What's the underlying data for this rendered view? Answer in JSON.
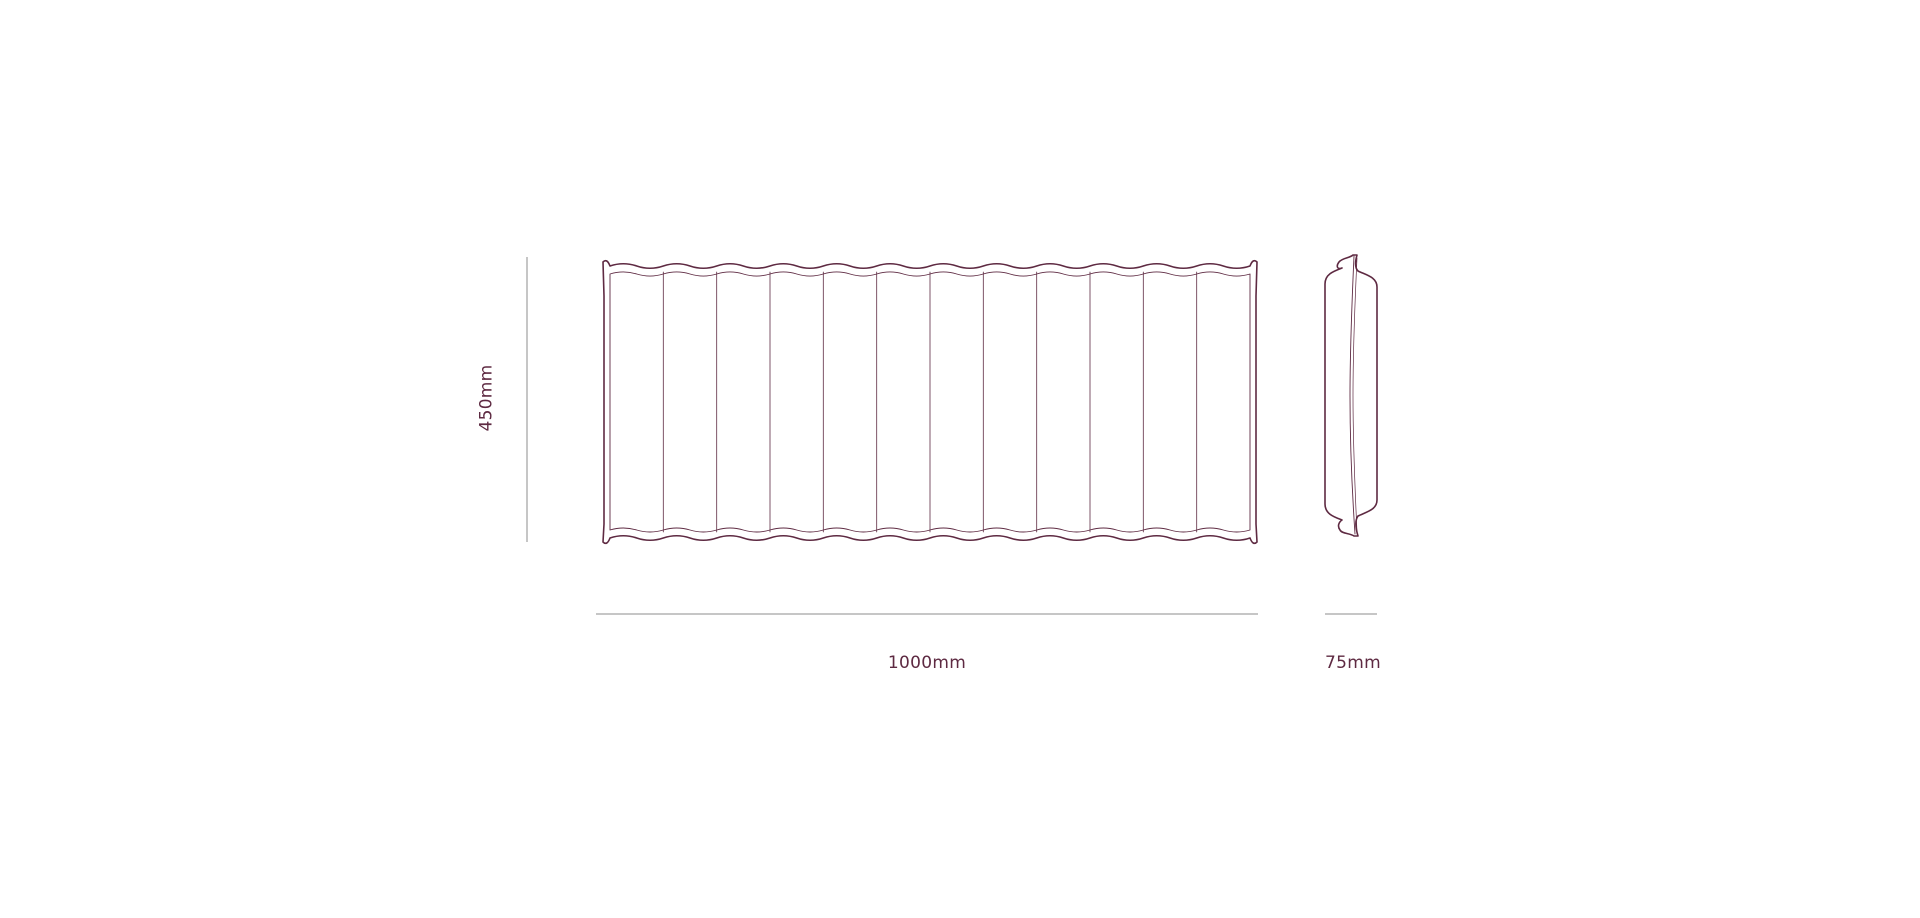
{
  "drawing": {
    "line_color": "#5e2a42",
    "guide_color": "#8c8c8c",
    "dimensions": {
      "height_label": "450mm",
      "width_label": "1000mm",
      "depth_label": "75mm"
    },
    "front_view": {
      "flute_count": 12
    }
  }
}
